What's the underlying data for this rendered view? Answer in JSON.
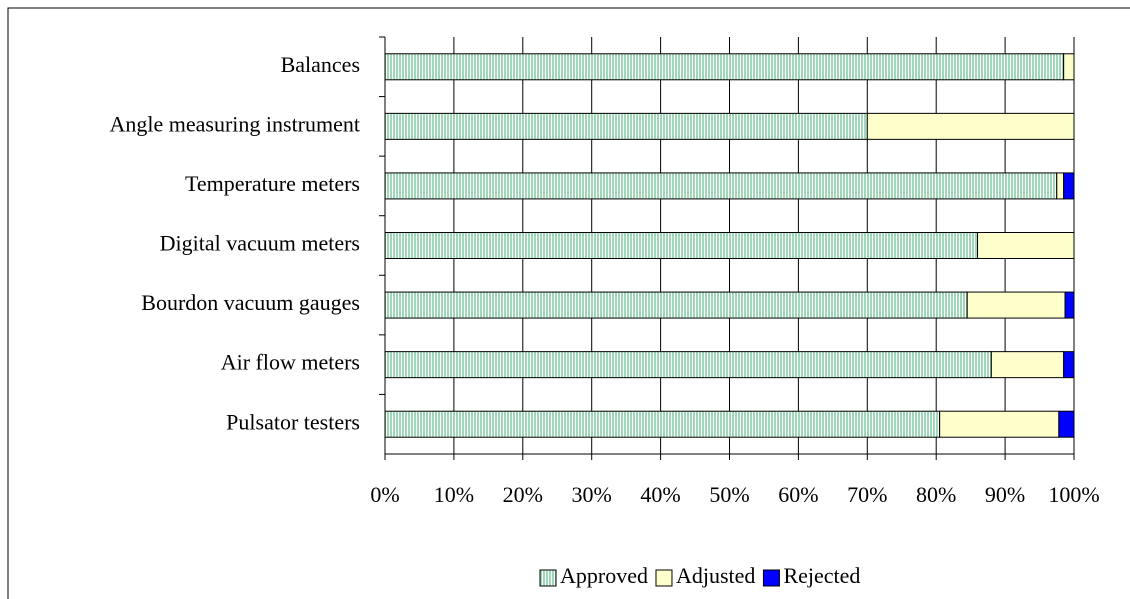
{
  "chart_data": {
    "type": "stacked-barh",
    "categories": [
      "Balances",
      "Angle measuring instrument",
      "Temperature meters",
      "Digital vacuum meters",
      "Bourdon vacuum gauges",
      "Air flow meters",
      "Pulsator testers"
    ],
    "series": [
      {
        "name": "Approved",
        "color": "#9fd8b8",
        "values": [
          98.5,
          70,
          97.5,
          86,
          84.5,
          88,
          80.5
        ]
      },
      {
        "name": "Adjusted",
        "color": "#ffffcc",
        "values": [
          1.5,
          30,
          1,
          14,
          14.2,
          10.5,
          17.3
        ]
      },
      {
        "name": "Rejected",
        "color": "#0000ff",
        "values": [
          0,
          0,
          1.5,
          0,
          1.3,
          1.5,
          2.2
        ]
      }
    ],
    "xlim": [
      0,
      100
    ],
    "xticks": [
      {
        "value": 0,
        "label": "0%"
      },
      {
        "value": 10,
        "label": "10%"
      },
      {
        "value": 20,
        "label": "20%"
      },
      {
        "value": 30,
        "label": "30%"
      },
      {
        "value": 40,
        "label": "40%"
      },
      {
        "value": 50,
        "label": "50%"
      },
      {
        "value": 60,
        "label": "60%"
      },
      {
        "value": 70,
        "label": "70%"
      },
      {
        "value": 80,
        "label": "80%"
      },
      {
        "value": 90,
        "label": "90%"
      },
      {
        "value": 100,
        "label": "100%"
      }
    ],
    "grid": true,
    "legend": "bottom"
  }
}
